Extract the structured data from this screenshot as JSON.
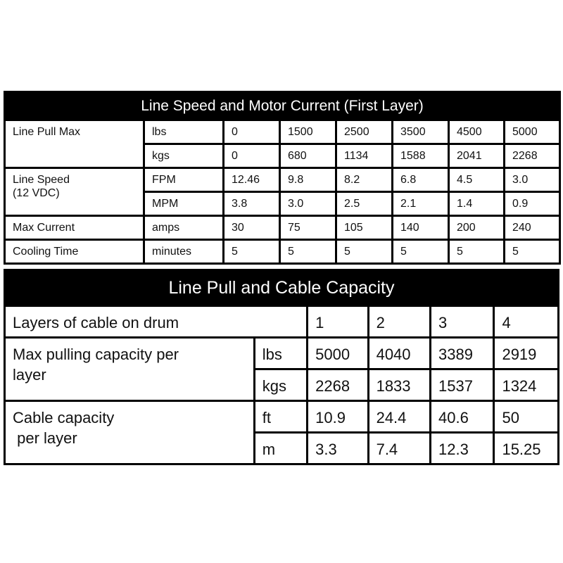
{
  "table1": {
    "title": "Line Speed and Motor Current (First Layer)",
    "rows": [
      {
        "label": "Line Pull Max",
        "unit": "lbs",
        "values": [
          "0",
          "1500",
          "2500",
          "3500",
          "4500",
          "5000"
        ]
      },
      {
        "unit": "kgs",
        "values": [
          "0",
          "680",
          "1134",
          "1588",
          "2041",
          "2268"
        ]
      },
      {
        "label": "Line Speed",
        "label2": "(12 VDC)",
        "unit": "FPM",
        "values": [
          "12.46",
          "9.8",
          "8.2",
          "6.8",
          "4.5",
          "3.0"
        ]
      },
      {
        "unit": "MPM",
        "values": [
          "3.8",
          "3.0",
          "2.5",
          "2.1",
          "1.4",
          "0.9"
        ]
      },
      {
        "label": "Max Current",
        "unit": "amps",
        "values": [
          "30",
          "75",
          "105",
          "140",
          "200",
          "240"
        ]
      },
      {
        "label": "Cooling Time",
        "unit": "minutes",
        "values": [
          "5",
          "5",
          "5",
          "5",
          "5",
          "5"
        ]
      }
    ]
  },
  "table2": {
    "title": "Line Pull and Cable Capacity",
    "layers_label": "Layers of cable on drum",
    "layers": [
      "1",
      "2",
      "3",
      "4"
    ],
    "rows": [
      {
        "label": "Max pulling capacity per",
        "label2": "layer",
        "unit": "lbs",
        "values": [
          "5000",
          "4040",
          "3389",
          "2919"
        ]
      },
      {
        "unit": "kgs",
        "values": [
          "2268",
          "1833",
          "1537",
          "1324"
        ]
      },
      {
        "label": "Cable capacity",
        "label2": " per layer",
        "unit": "ft",
        "values": [
          "10.9",
          "24.4",
          "40.6",
          "50"
        ]
      },
      {
        "unit": "m",
        "values": [
          "3.3",
          "7.4",
          "12.3",
          "15.25"
        ]
      }
    ]
  }
}
